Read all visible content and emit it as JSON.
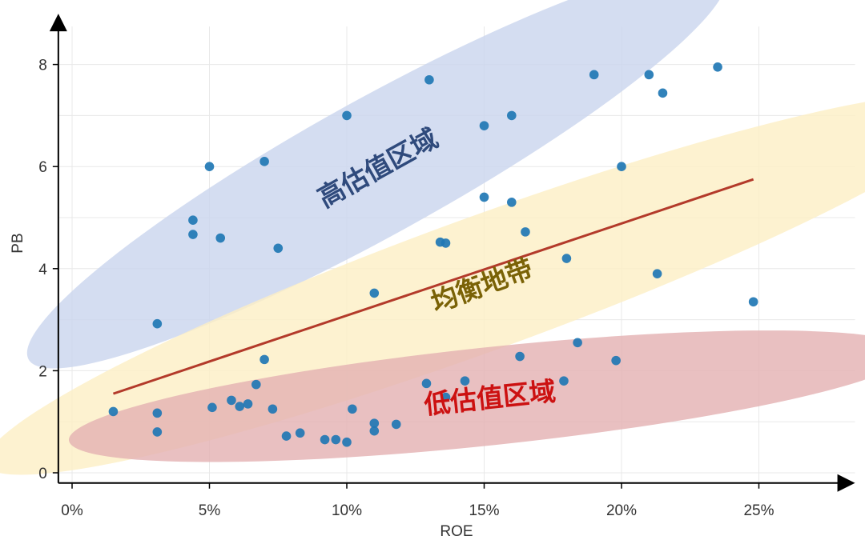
{
  "chart_data": {
    "type": "scatter",
    "title": "",
    "xlabel": "ROE",
    "ylabel": "PB",
    "xlim": [
      -0.5,
      28.5
    ],
    "ylim": [
      -0.2,
      8.9
    ],
    "grid": true,
    "x_ticks": [
      {
        "value": 0,
        "label": "0%"
      },
      {
        "value": 5,
        "label": "5%"
      },
      {
        "value": 10,
        "label": "10%"
      },
      {
        "value": 15,
        "label": "15%"
      },
      {
        "value": 20,
        "label": "20%"
      },
      {
        "value": 25,
        "label": "25%"
      }
    ],
    "y_ticks": [
      {
        "value": 0,
        "label": "0"
      },
      {
        "value": 2,
        "label": "2"
      },
      {
        "value": 4,
        "label": "4"
      },
      {
        "value": 6,
        "label": "6"
      },
      {
        "value": 8,
        "label": "8"
      }
    ],
    "points": [
      {
        "x": 1.5,
        "y": 1.2
      },
      {
        "x": 3.1,
        "y": 2.92
      },
      {
        "x": 3.1,
        "y": 1.17
      },
      {
        "x": 3.1,
        "y": 0.8
      },
      {
        "x": 4.4,
        "y": 4.95
      },
      {
        "x": 4.4,
        "y": 4.67
      },
      {
        "x": 5.0,
        "y": 6.0
      },
      {
        "x": 5.1,
        "y": 1.28
      },
      {
        "x": 5.4,
        "y": 4.6
      },
      {
        "x": 5.8,
        "y": 1.42
      },
      {
        "x": 6.1,
        "y": 1.3
      },
      {
        "x": 6.4,
        "y": 1.35
      },
      {
        "x": 6.7,
        "y": 1.73
      },
      {
        "x": 7.0,
        "y": 6.1
      },
      {
        "x": 7.0,
        "y": 2.22
      },
      {
        "x": 7.3,
        "y": 1.25
      },
      {
        "x": 7.5,
        "y": 4.4
      },
      {
        "x": 7.8,
        "y": 0.72
      },
      {
        "x": 8.3,
        "y": 0.78
      },
      {
        "x": 9.2,
        "y": 0.65
      },
      {
        "x": 9.6,
        "y": 0.65
      },
      {
        "x": 10.0,
        "y": 7.0
      },
      {
        "x": 10.0,
        "y": 0.6
      },
      {
        "x": 10.2,
        "y": 1.25
      },
      {
        "x": 11.0,
        "y": 3.52
      },
      {
        "x": 11.0,
        "y": 0.97
      },
      {
        "x": 11.0,
        "y": 0.82
      },
      {
        "x": 11.8,
        "y": 0.95
      },
      {
        "x": 12.9,
        "y": 1.75
      },
      {
        "x": 13.0,
        "y": 7.7
      },
      {
        "x": 13.4,
        "y": 4.52
      },
      {
        "x": 13.6,
        "y": 4.5
      },
      {
        "x": 13.6,
        "y": 1.48
      },
      {
        "x": 14.3,
        "y": 1.8
      },
      {
        "x": 15.0,
        "y": 6.8
      },
      {
        "x": 15.0,
        "y": 5.4
      },
      {
        "x": 16.0,
        "y": 7.0
      },
      {
        "x": 16.0,
        "y": 5.3
      },
      {
        "x": 16.3,
        "y": 2.28
      },
      {
        "x": 16.5,
        "y": 4.72
      },
      {
        "x": 17.9,
        "y": 1.8
      },
      {
        "x": 18.0,
        "y": 4.2
      },
      {
        "x": 18.4,
        "y": 2.55
      },
      {
        "x": 19.0,
        "y": 7.8
      },
      {
        "x": 19.8,
        "y": 2.2
      },
      {
        "x": 20.0,
        "y": 6.0
      },
      {
        "x": 21.0,
        "y": 7.8
      },
      {
        "x": 21.3,
        "y": 3.9
      },
      {
        "x": 21.5,
        "y": 7.44
      },
      {
        "x": 23.5,
        "y": 7.95
      },
      {
        "x": 24.8,
        "y": 3.35
      }
    ],
    "trendline": {
      "x1": 1.5,
      "y1": 1.55,
      "x2": 24.8,
      "y2": 5.75
    },
    "zones": [
      {
        "label": "高估值区域",
        "cx": 11.1,
        "cy": 6.0,
        "rx": 14.5,
        "ry": 1.33,
        "fill": "#c9d5ee",
        "text_color": "#2f4a7c"
      },
      {
        "label": "均衡地带",
        "cx": 14.9,
        "cy": 3.7,
        "rx": 19.2,
        "ry": 1.31,
        "fill": "#fcefc4",
        "text_color": "#7a6206"
      },
      {
        "label": "低估值区域",
        "cx": 15.2,
        "cy": 1.5,
        "rx": 15.4,
        "ry": 0.96,
        "fill": "#e4b0b2",
        "text_color": "#cc1111"
      }
    ],
    "colors": {
      "point": "#1f77b4",
      "trendline": "#b33a2a",
      "axis": "#000000",
      "grid": "#e8e8e8"
    }
  }
}
